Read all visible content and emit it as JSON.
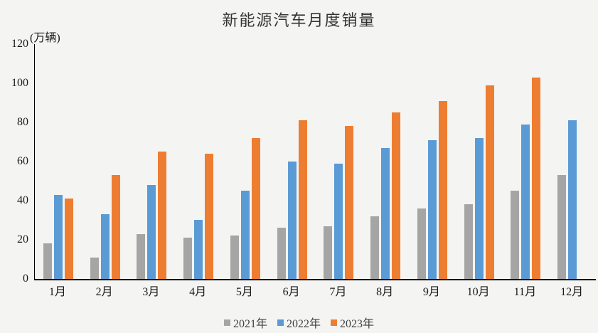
{
  "chart_data": {
    "type": "bar",
    "title": "新能源汽车月度销量",
    "unit_label": "(万辆)",
    "categories": [
      "1月",
      "2月",
      "3月",
      "4月",
      "5月",
      "6月",
      "7月",
      "8月",
      "9月",
      "10月",
      "11月",
      "12月"
    ],
    "series": [
      {
        "name": "2021年",
        "color": "#A5A5A5",
        "values": [
          18,
          11,
          23,
          21,
          22,
          26,
          27,
          32,
          36,
          38,
          45,
          53
        ]
      },
      {
        "name": "2022年",
        "color": "#5B9BD5",
        "values": [
          43,
          33,
          48,
          30,
          45,
          60,
          59,
          67,
          71,
          72,
          79,
          81
        ]
      },
      {
        "name": "2023年",
        "color": "#ED7D31",
        "values": [
          41,
          53,
          65,
          64,
          72,
          81,
          78,
          85,
          91,
          99,
          103,
          null
        ]
      }
    ],
    "ylim": [
      0,
      120
    ],
    "y_ticks": [
      0,
      20,
      40,
      60,
      80,
      100,
      120
    ],
    "grid": false,
    "legend_position": "bottom",
    "background_color": "#f4f4f2",
    "axis_color": "#000000",
    "text_color": "#1a1a1a",
    "title_color": "#333333"
  }
}
